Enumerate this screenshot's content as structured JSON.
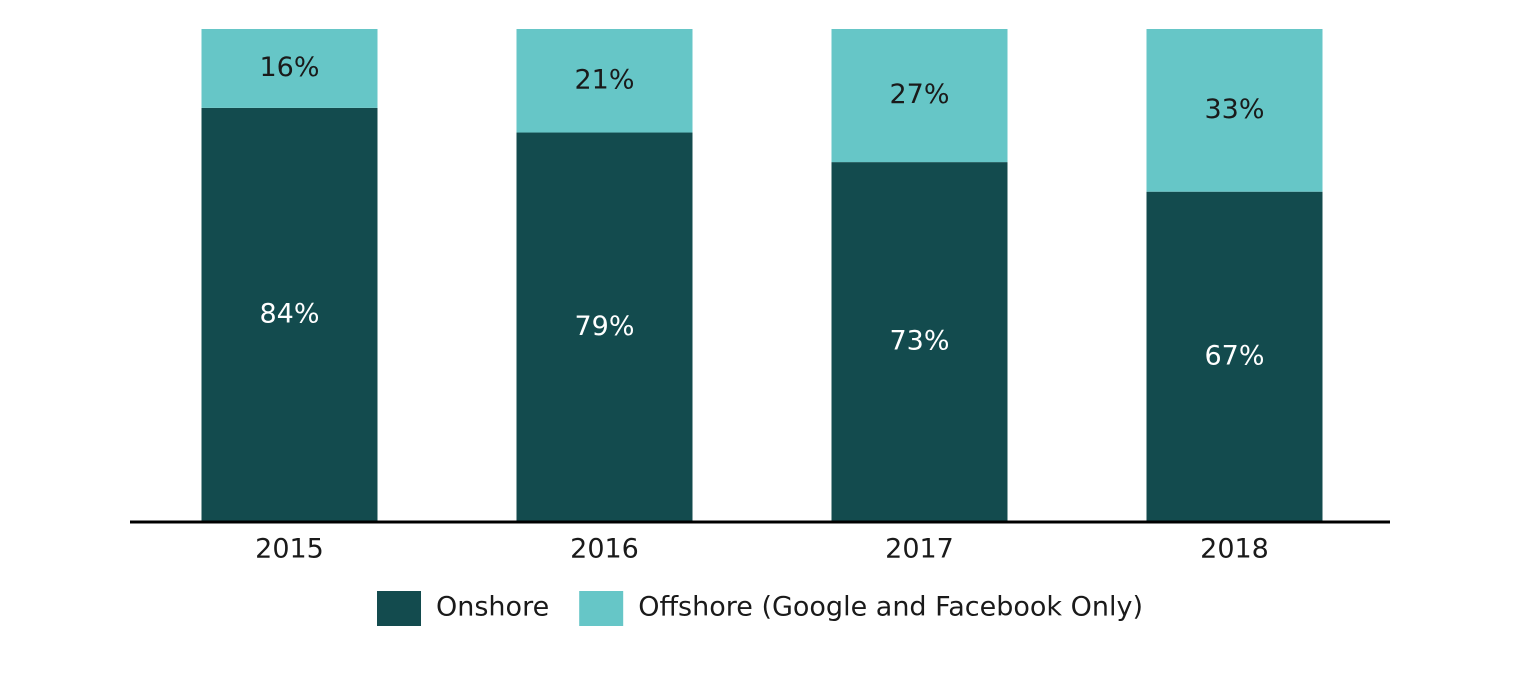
{
  "chart_data": {
    "type": "stacked_bar",
    "categories": [
      "2015",
      "2016",
      "2017",
      "2018"
    ],
    "series": [
      {
        "name": "Onshore",
        "color": "#134b4e",
        "label_color": "#ffffff",
        "values": [
          84,
          79,
          73,
          67
        ],
        "value_labels": [
          "84%",
          "79%",
          "73%",
          "67%"
        ]
      },
      {
        "name": "Offshore (Google and Facebook Only)",
        "color": "#66c6c7",
        "label_color": "#1a1a1a",
        "values": [
          16,
          21,
          27,
          33
        ],
        "value_labels": [
          "16%",
          "21%",
          "27%",
          "33%"
        ]
      }
    ],
    "legend": "bottom"
  }
}
